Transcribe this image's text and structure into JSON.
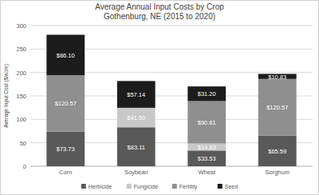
{
  "chart_data": {
    "type": "bar",
    "stacked": true,
    "title": "Average Annual Input Costs by Crop",
    "subtitle": "Gothenburg, NE (2015 to 2020)",
    "y_label": "Average Input Cost ($/acre)",
    "categories": [
      "Corn",
      "Soybean",
      "Wheat",
      "Sorghum"
    ],
    "series": [
      {
        "name": "Herbicide",
        "color": "#595959",
        "values": [
          73.73,
          83.11,
          33.53,
          65.59
        ],
        "value_labels": [
          "$73.73",
          "$83.11",
          "$33.53",
          "$65.59"
        ]
      },
      {
        "name": "Fungicide",
        "color": "#c8c8c8",
        "values": [
          0,
          41.5,
          14.83,
          0
        ],
        "value_labels": [
          null,
          "$41.50",
          "$14.83",
          null
        ]
      },
      {
        "name": "Fertility",
        "color": "#8f8f8f",
        "values": [
          120.57,
          0,
          90.61,
          120.57
        ],
        "value_labels": [
          "$120.57",
          null,
          "$90.61",
          "$120.57"
        ]
      },
      {
        "name": "Seed",
        "color": "#1c1c1c",
        "values": [
          86.1,
          57.14,
          31.2,
          10.83
        ],
        "value_labels": [
          "$86.10",
          "$57.14",
          "$31.20",
          "$10.83"
        ]
      }
    ],
    "ylim": [
      0,
      300
    ],
    "yticks": [
      0,
      50,
      100,
      150,
      200,
      250,
      300
    ],
    "grid": true,
    "data_labels": true,
    "legend": "bottom"
  }
}
